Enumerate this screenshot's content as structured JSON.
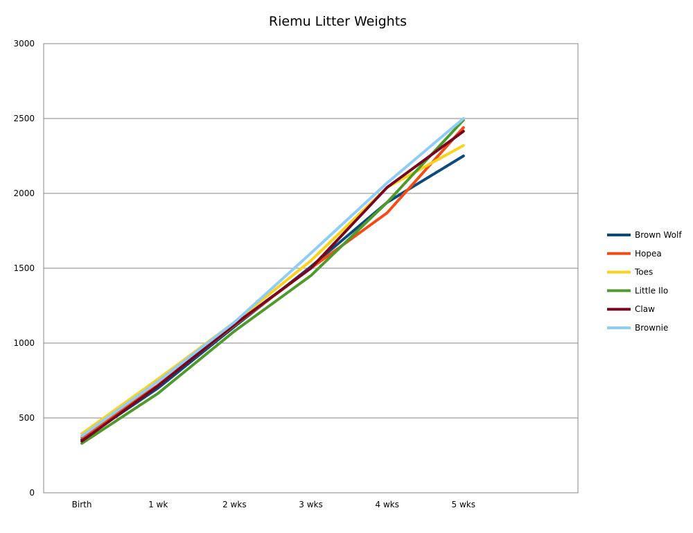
{
  "chart_data": {
    "type": "line",
    "title": "Riemu Litter Weights",
    "xlabel": "",
    "ylabel": "",
    "categories": [
      "Birth",
      "1 wk",
      "2 wks",
      "3 wks",
      "4 wks",
      "5 wks"
    ],
    "extra_category_slots": 1,
    "ylim": [
      0,
      3000
    ],
    "yticks": [
      0,
      500,
      1000,
      1500,
      2000,
      2500,
      3000
    ],
    "grid": true,
    "legend_position": "right",
    "series": [
      {
        "name": "Brown Wolf",
        "color": "#0b4a7d",
        "values": [
          355,
          700,
          1110,
          1510,
          1940,
          2250
        ]
      },
      {
        "name": "Hopea",
        "color": "#f44c14",
        "values": [
          370,
          720,
          1120,
          1500,
          1870,
          2440
        ]
      },
      {
        "name": "Toes",
        "color": "#fdd21e",
        "values": [
          395,
          760,
          1140,
          1550,
          2040,
          2320
        ]
      },
      {
        "name": "Little Ilo",
        "color": "#4e9a2a",
        "values": [
          330,
          665,
          1080,
          1450,
          1940,
          2490
        ]
      },
      {
        "name": "Claw",
        "color": "#77051f",
        "values": [
          345,
          715,
          1125,
          1500,
          2040,
          2415
        ]
      },
      {
        "name": "Brownie",
        "color": "#8ecdf5",
        "values": [
          380,
          745,
          1140,
          1600,
          2070,
          2500
        ]
      }
    ]
  }
}
